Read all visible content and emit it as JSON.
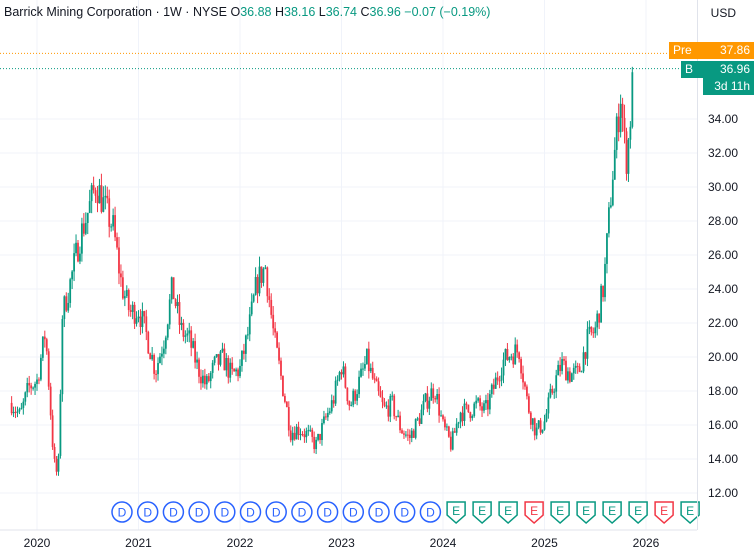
{
  "header": {
    "symbol": "Barrick Mining Corporation · 1W · NYSE",
    "o_label": "O",
    "o": "36.88",
    "h_label": "H",
    "h": "38.16",
    "l_label": "L",
    "l": "36.74",
    "c_label": "C",
    "c": "36.96",
    "change": "−0.07 (−0.19%)"
  },
  "currency": "USD",
  "price_tags": {
    "pre_label": "Pre",
    "pre_value": "37.86",
    "bid_label": "B",
    "bid_value": "36.96",
    "countdown": "3d 11h"
  },
  "colors": {
    "up": "#089981",
    "down": "#f23645",
    "pre": "#ff9800",
    "dividend": "#2962ff",
    "earnings": "#089981"
  },
  "events": {
    "dividend_letter": "D",
    "earnings_letter": "E",
    "dividend_count": 13,
    "earnings": [
      "up",
      "up",
      "up",
      "down",
      "up",
      "up",
      "up",
      "up",
      "down",
      "up"
    ]
  },
  "chart_data": {
    "type": "candlestick",
    "title": "Barrick Mining Corporation · 1W · NYSE",
    "y_ticks": [
      "12.00",
      "14.00",
      "16.00",
      "18.00",
      "20.00",
      "22.00",
      "24.00",
      "26.00",
      "28.00",
      "30.00",
      "32.00",
      "34.00"
    ],
    "x_ticks": [
      "2020",
      "2021",
      "2022",
      "2023",
      "2024",
      "2025",
      "2026"
    ],
    "ylim": [
      10.5,
      40.2
    ],
    "grid": true,
    "approx_weekly_close": [
      [
        "2019-10",
        17.3
      ],
      [
        "2019-11",
        16.5
      ],
      [
        "2019-12",
        18.2
      ],
      [
        "2020-01",
        18.6
      ],
      [
        "2020-02",
        21.5
      ],
      [
        "2020-03",
        13.8
      ],
      [
        "2020-03-16",
        12.9
      ],
      [
        "2020-04",
        22.5
      ],
      [
        "2020-05",
        24.5
      ],
      [
        "2020-06",
        26.9
      ],
      [
        "2020-07",
        28.5
      ],
      [
        "2020-08",
        30.2
      ],
      [
        "2020-09",
        28.8
      ],
      [
        "2020-10",
        27.6
      ],
      [
        "2020-11",
        24.2
      ],
      [
        "2020-12",
        22.6
      ],
      [
        "2021-01",
        22.8
      ],
      [
        "2021-02",
        21.2
      ],
      [
        "2021-03",
        19.2
      ],
      [
        "2021-04",
        21.0
      ],
      [
        "2021-05",
        24.1
      ],
      [
        "2021-06",
        21.6
      ],
      [
        "2021-07",
        21.0
      ],
      [
        "2021-08",
        19.4
      ],
      [
        "2021-09",
        18.3
      ],
      [
        "2021-10",
        19.5
      ],
      [
        "2021-11",
        19.9
      ],
      [
        "2021-12",
        18.9
      ],
      [
        "2022-01",
        19.3
      ],
      [
        "2022-02",
        21.5
      ],
      [
        "2022-03",
        24.4
      ],
      [
        "2022-04",
        25.3
      ],
      [
        "2022-05",
        21.2
      ],
      [
        "2022-06",
        18.4
      ],
      [
        "2022-07",
        15.6
      ],
      [
        "2022-08",
        15.8
      ],
      [
        "2022-09",
        15.4
      ],
      [
        "2022-10",
        14.8
      ],
      [
        "2022-11",
        16.2
      ],
      [
        "2022-12",
        17.4
      ],
      [
        "2023-01",
        19.5
      ],
      [
        "2023-02",
        17.1
      ],
      [
        "2023-03",
        18.4
      ],
      [
        "2023-04",
        19.8
      ],
      [
        "2023-05",
        18.2
      ],
      [
        "2023-06",
        16.9
      ],
      [
        "2023-07",
        17.2
      ],
      [
        "2023-08",
        15.8
      ],
      [
        "2023-09",
        15.2
      ],
      [
        "2023-10",
        16.2
      ],
      [
        "2023-11",
        17.4
      ],
      [
        "2023-12",
        18.2
      ],
      [
        "2024-01",
        15.9
      ],
      [
        "2024-02",
        14.8
      ],
      [
        "2024-03",
        16.8
      ],
      [
        "2024-04",
        16.8
      ],
      [
        "2024-05",
        17.2
      ],
      [
        "2024-06",
        16.8
      ],
      [
        "2024-07",
        18.2
      ],
      [
        "2024-08",
        19.7
      ],
      [
        "2024-09",
        20.2
      ],
      [
        "2024-10",
        20.4
      ],
      [
        "2024-11",
        17.2
      ],
      [
        "2024-12",
        15.6
      ],
      [
        "2025-01",
        16.2
      ],
      [
        "2025-02",
        18.2
      ],
      [
        "2025-03",
        19.6
      ],
      [
        "2025-04",
        19.0
      ],
      [
        "2025-05",
        19.0
      ],
      [
        "2025-06",
        20.9
      ],
      [
        "2025-07",
        21.6
      ],
      [
        "2025-08",
        24.2
      ],
      [
        "2025-09",
        30.5
      ],
      [
        "2025-10",
        35.5
      ],
      [
        "2025-10-20",
        31.5
      ],
      [
        "2025-11",
        33.0
      ],
      [
        "2025-11-17",
        36.96
      ]
    ]
  }
}
